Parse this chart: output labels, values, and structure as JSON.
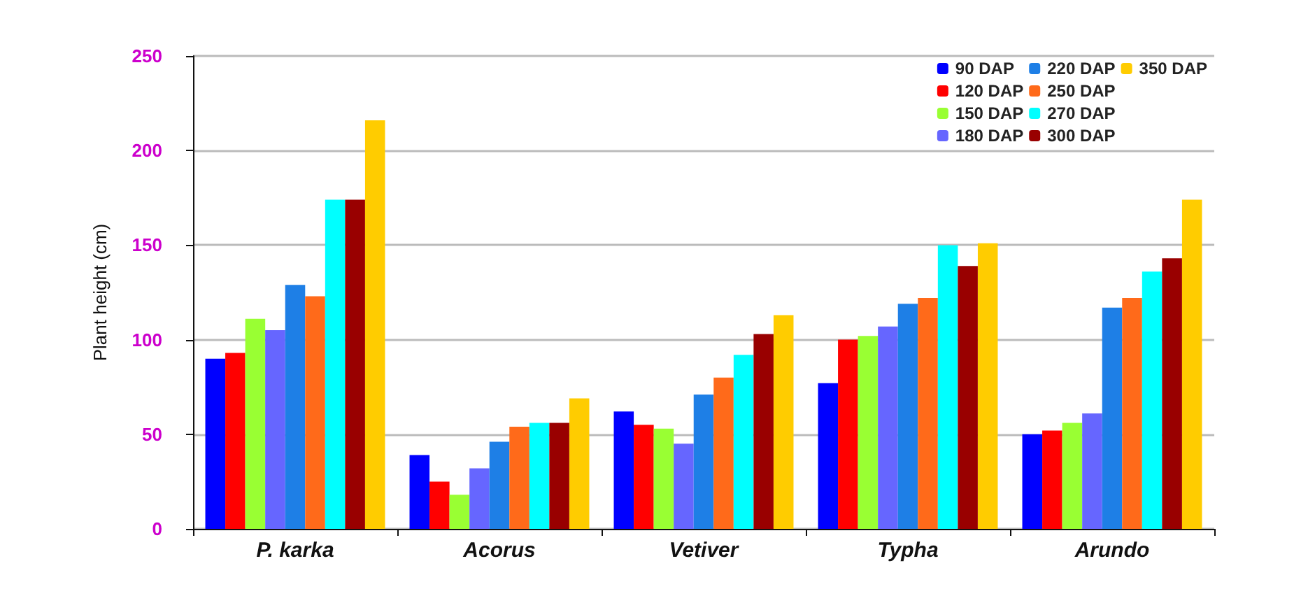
{
  "chart_data": {
    "type": "bar",
    "ylabel": "Plant height (cm)",
    "categories": [
      "P. karka",
      "Acorus",
      "Vetiver",
      "Typha",
      "Arundo"
    ],
    "series": [
      {
        "name": "90 DAP",
        "color": "#0000ff",
        "values": [
          90,
          39,
          62,
          77,
          50
        ]
      },
      {
        "name": "120 DAP",
        "color": "#ff0000",
        "values": [
          93,
          25,
          55,
          100,
          52
        ]
      },
      {
        "name": "150 DAP",
        "color": "#99ff33",
        "values": [
          111,
          18,
          53,
          102,
          56
        ]
      },
      {
        "name": "180 DAP",
        "color": "#6666ff",
        "values": [
          105,
          32,
          45,
          107,
          61
        ]
      },
      {
        "name": "220 DAP",
        "color": "#1e7fe6",
        "values": [
          129,
          46,
          71,
          119,
          117
        ]
      },
      {
        "name": "250 DAP",
        "color": "#ff6a1a",
        "values": [
          123,
          54,
          80,
          122,
          122
        ]
      },
      {
        "name": "270 DAP",
        "color": "#00ffff",
        "values": [
          174,
          56,
          92,
          150,
          136
        ]
      },
      {
        "name": "300 DAP",
        "color": "#990000",
        "values": [
          174,
          56,
          103,
          139,
          143
        ]
      },
      {
        "name": "350 DAP",
        "color": "#ffcc00",
        "values": [
          216,
          69,
          113,
          151,
          174
        ]
      }
    ],
    "ylim": [
      0,
      250
    ],
    "yticks": [
      0,
      50,
      100,
      150,
      200,
      250
    ],
    "grid": "y",
    "legend": "top right"
  }
}
